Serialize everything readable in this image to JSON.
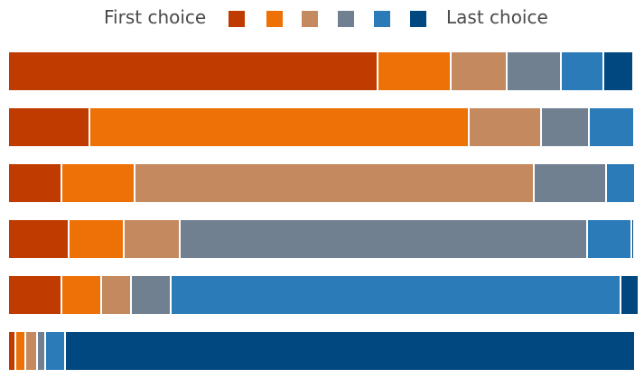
{
  "legend": {
    "first_label": "First choice",
    "last_label": "Last choice"
  },
  "colors": [
    "#bf3b00",
    "#ed7107",
    "#c4895e",
    "#718091",
    "#2b7bb8",
    "#00487f"
  ],
  "chart_data": {
    "type": "bar",
    "orientation": "horizontal",
    "stacked": true,
    "grid": false,
    "rank_labels": [
      "First choice",
      "",
      "",
      "",
      "",
      "Last choice"
    ],
    "rows": [
      [
        409,
        81,
        62,
        60,
        47,
        33
      ],
      [
        90,
        420,
        80,
        53,
        50,
        0
      ],
      [
        59,
        81,
        442,
        80,
        32,
        0
      ],
      [
        67,
        61,
        62,
        451,
        49,
        3
      ],
      [
        59,
        44,
        33,
        44,
        498,
        20
      ],
      [
        8,
        11,
        13,
        9,
        22,
        631
      ]
    ]
  }
}
